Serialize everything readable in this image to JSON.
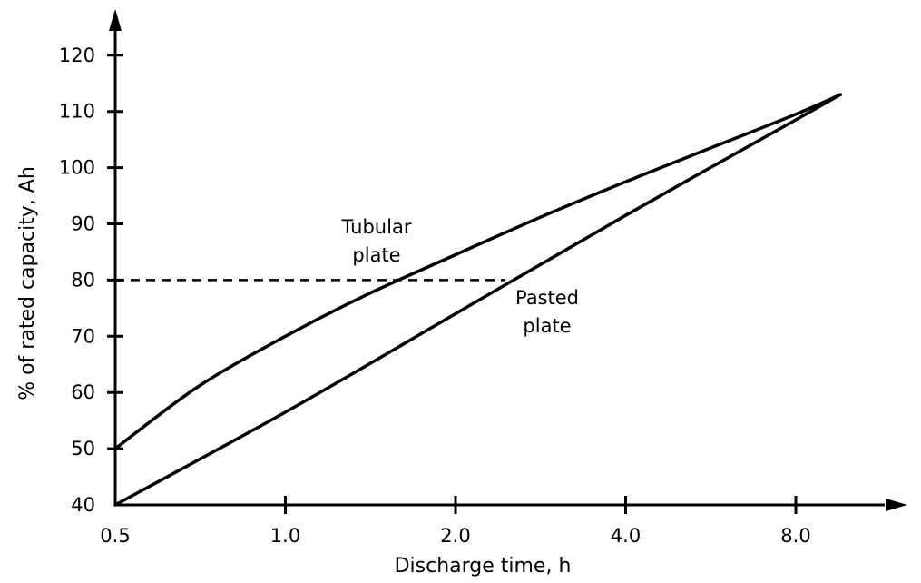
{
  "chart_data": {
    "type": "line",
    "title": "",
    "xlabel": "Discharge time, h",
    "ylabel": "% of rated capacity, Ah",
    "x_scale": "log2",
    "xlim": [
      0.5,
      12
    ],
    "ylim": [
      40,
      125
    ],
    "x_ticks": [
      {
        "value": 0.5,
        "label": "0.5"
      },
      {
        "value": 1.0,
        "label": "1.0"
      },
      {
        "value": 2.0,
        "label": "2.0"
      },
      {
        "value": 4.0,
        "label": "4.0"
      },
      {
        "value": 8.0,
        "label": "8.0"
      }
    ],
    "y_ticks": [
      {
        "value": 40,
        "label": "40"
      },
      {
        "value": 50,
        "label": "50"
      },
      {
        "value": 60,
        "label": "60"
      },
      {
        "value": 70,
        "label": "70"
      },
      {
        "value": 80,
        "label": "80"
      },
      {
        "value": 90,
        "label": "90"
      },
      {
        "value": 100,
        "label": "100"
      },
      {
        "value": 110,
        "label": "110"
      },
      {
        "value": 120,
        "label": "120"
      }
    ],
    "grid": false,
    "series": [
      {
        "label_lines": [
          "Tubular",
          "plate"
        ],
        "x": [
          0.5,
          0.7,
          1.0,
          1.4,
          2.0,
          2.8,
          4.0,
          5.66,
          8.0,
          9.6
        ],
        "y": [
          50,
          61,
          70,
          77.5,
          84.5,
          91,
          97.5,
          103.5,
          109.5,
          113
        ]
      },
      {
        "label_lines": [
          "Pasted",
          "plate"
        ],
        "x": [
          0.5,
          1.0,
          2.0,
          4.0,
          8.0,
          9.6
        ],
        "y": [
          40,
          56.5,
          74,
          91.5,
          108.5,
          113
        ]
      }
    ],
    "reference_line": {
      "y": 80,
      "x_end": 2.45,
      "style": "dashed"
    }
  }
}
